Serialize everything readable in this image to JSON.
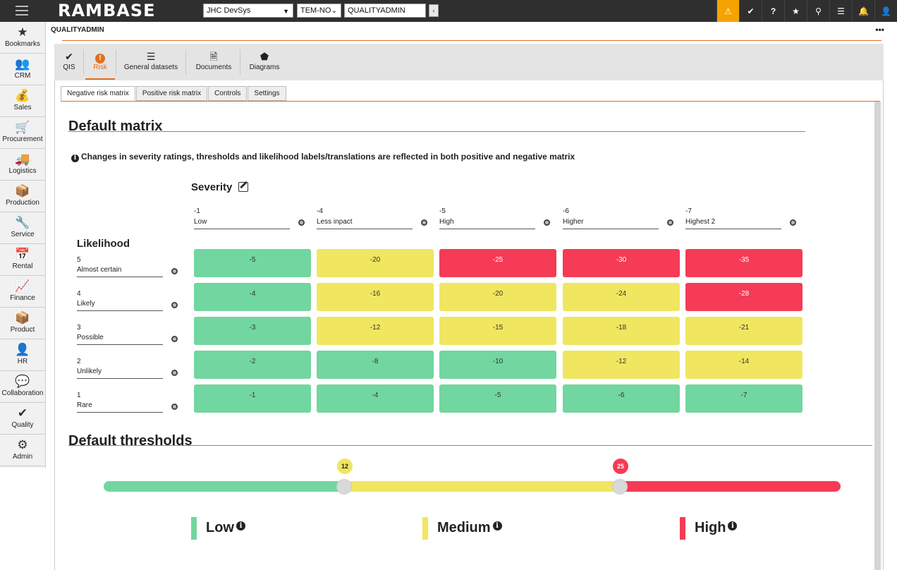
{
  "topbar": {
    "logo": "RAMBASE",
    "company": "JHC DevSys",
    "locale": "TEM-NO",
    "user": "QUALITYADMIN",
    "collapse": "‹",
    "icons": [
      {
        "name": "warning-icon",
        "glyph": "⚠",
        "color": "#f5a300"
      },
      {
        "name": "check-badge-icon",
        "glyph": "✔"
      },
      {
        "name": "help-icon",
        "glyph": "?"
      },
      {
        "name": "star-icon",
        "glyph": "★"
      },
      {
        "name": "paperclip-icon",
        "glyph": "⚲"
      },
      {
        "name": "list-icon",
        "glyph": "☰"
      },
      {
        "name": "bell-icon",
        "glyph": "🔔"
      },
      {
        "name": "user-icon",
        "glyph": "👤"
      }
    ]
  },
  "sidebar": {
    "items": [
      {
        "label": "Bookmarks",
        "icon": "★",
        "icon_name": "star-icon"
      },
      {
        "label": "CRM",
        "icon": "👥",
        "icon_name": "people-icon"
      },
      {
        "label": "Sales",
        "icon": "💰",
        "icon_name": "money-bag-icon"
      },
      {
        "label": "Procurement",
        "icon": "🛒",
        "icon_name": "cart-icon"
      },
      {
        "label": "Logistics",
        "icon": "🚚",
        "icon_name": "truck-icon"
      },
      {
        "label": "Production",
        "icon": "📦",
        "icon_name": "boxes-icon"
      },
      {
        "label": "Service",
        "icon": "🔧",
        "icon_name": "wrench-icon"
      },
      {
        "label": "Rental",
        "icon": "📅",
        "icon_name": "calendar-icon"
      },
      {
        "label": "Finance",
        "icon": "📈",
        "icon_name": "chart-line-icon"
      },
      {
        "label": "Product",
        "icon": "📦",
        "icon_name": "cube-icon"
      },
      {
        "label": "HR",
        "icon": "👤",
        "icon_name": "person-icon"
      },
      {
        "label": "Collaboration",
        "icon": "💬",
        "icon_name": "chat-icon"
      },
      {
        "label": "Quality",
        "icon": "✔",
        "icon_name": "quality-badge-icon"
      },
      {
        "label": "Admin",
        "icon": "⚙",
        "icon_name": "gear-icon"
      }
    ]
  },
  "page": {
    "title": "QUALITYADMIN",
    "menu": "•••"
  },
  "module_tabs": [
    {
      "label": "QIS",
      "icon": "✔",
      "icon_name": "check-badge-icon"
    },
    {
      "label": "Risk",
      "icon": "!",
      "icon_name": "exclamation-icon",
      "active": true
    },
    {
      "label": "General datasets",
      "icon": "☰",
      "icon_name": "list-icon"
    },
    {
      "label": "Documents",
      "icon": "🗎",
      "icon_name": "document-icon"
    },
    {
      "label": "Diagrams",
      "icon": "⬟",
      "icon_name": "tag-icon"
    }
  ],
  "sub_tabs": [
    "Negative risk matrix",
    "Positive risk matrix",
    "Controls",
    "Settings"
  ],
  "matrix": {
    "heading": "Default matrix",
    "note": "Changes in severity ratings, thresholds and likelihood labels/translations are reflected in both positive and negative matrix",
    "severity_title": "Severity",
    "likelihood_title": "Likelihood",
    "severity": [
      {
        "value": "-1",
        "label": "Low"
      },
      {
        "value": "-4",
        "label": "Less inpact"
      },
      {
        "value": "-5",
        "label": "High"
      },
      {
        "value": "-6",
        "label": "Higher"
      },
      {
        "value": "-7",
        "label": "Highest 2"
      }
    ],
    "likelihood": [
      {
        "value": "5",
        "label": "Almost certain"
      },
      {
        "value": "4",
        "label": "Likely"
      },
      {
        "value": "3",
        "label": "Possible"
      },
      {
        "value": "2",
        "label": "Unlikely"
      },
      {
        "value": "1",
        "label": "Rare"
      }
    ],
    "cells": [
      [
        {
          "v": "-5",
          "level": "low"
        },
        {
          "v": "-20",
          "level": "medium"
        },
        {
          "v": "-25",
          "level": "high"
        },
        {
          "v": "-30",
          "level": "high"
        },
        {
          "v": "-35",
          "level": "high"
        }
      ],
      [
        {
          "v": "-4",
          "level": "low"
        },
        {
          "v": "-16",
          "level": "medium"
        },
        {
          "v": "-20",
          "level": "medium"
        },
        {
          "v": "-24",
          "level": "medium"
        },
        {
          "v": "-28",
          "level": "high"
        }
      ],
      [
        {
          "v": "-3",
          "level": "low"
        },
        {
          "v": "-12",
          "level": "medium"
        },
        {
          "v": "-15",
          "level": "medium"
        },
        {
          "v": "-18",
          "level": "medium"
        },
        {
          "v": "-21",
          "level": "medium"
        }
      ],
      [
        {
          "v": "-2",
          "level": "low"
        },
        {
          "v": "-8",
          "level": "low"
        },
        {
          "v": "-10",
          "level": "low"
        },
        {
          "v": "-12",
          "level": "medium"
        },
        {
          "v": "-14",
          "level": "medium"
        }
      ],
      [
        {
          "v": "-1",
          "level": "low"
        },
        {
          "v": "-4",
          "level": "low"
        },
        {
          "v": "-5",
          "level": "low"
        },
        {
          "v": "-6",
          "level": "low"
        },
        {
          "v": "-7",
          "level": "low"
        }
      ]
    ]
  },
  "thresholds": {
    "heading": "Default thresholds",
    "low_threshold": "12",
    "high_threshold": "25",
    "colors": {
      "low": "#72d6a0",
      "medium": "#f0e660",
      "high": "#f53b56"
    },
    "legend": [
      {
        "label": "Low",
        "color": "#72d6a0"
      },
      {
        "label": "Medium",
        "color": "#f0e660"
      },
      {
        "label": "High",
        "color": "#f53b56"
      }
    ]
  }
}
